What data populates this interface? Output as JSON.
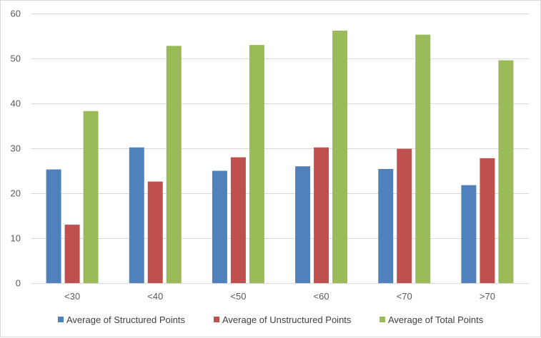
{
  "chart_data": {
    "type": "bar",
    "title": "",
    "xlabel": "",
    "ylabel": "",
    "ylim": [
      0,
      60
    ],
    "yticks": [
      0,
      10,
      20,
      30,
      40,
      50,
      60
    ],
    "grid": true,
    "legend_position": "bottom",
    "categories": [
      "<30",
      "<40",
      "<50",
      "<60",
      "<70",
      ">70"
    ],
    "series": [
      {
        "name": "Average of Structured Points",
        "color": "#4f81bd",
        "values": [
          25.3,
          30.2,
          25.0,
          26.0,
          25.4,
          21.8
        ]
      },
      {
        "name": "Average of Unstructured Points",
        "color": "#c0504d",
        "values": [
          13.0,
          22.6,
          28.0,
          30.2,
          29.9,
          27.8
        ]
      },
      {
        "name": "Average of Total Points",
        "color": "#9bbb59",
        "values": [
          38.3,
          52.8,
          53.0,
          56.2,
          55.3,
          49.6
        ]
      }
    ]
  }
}
